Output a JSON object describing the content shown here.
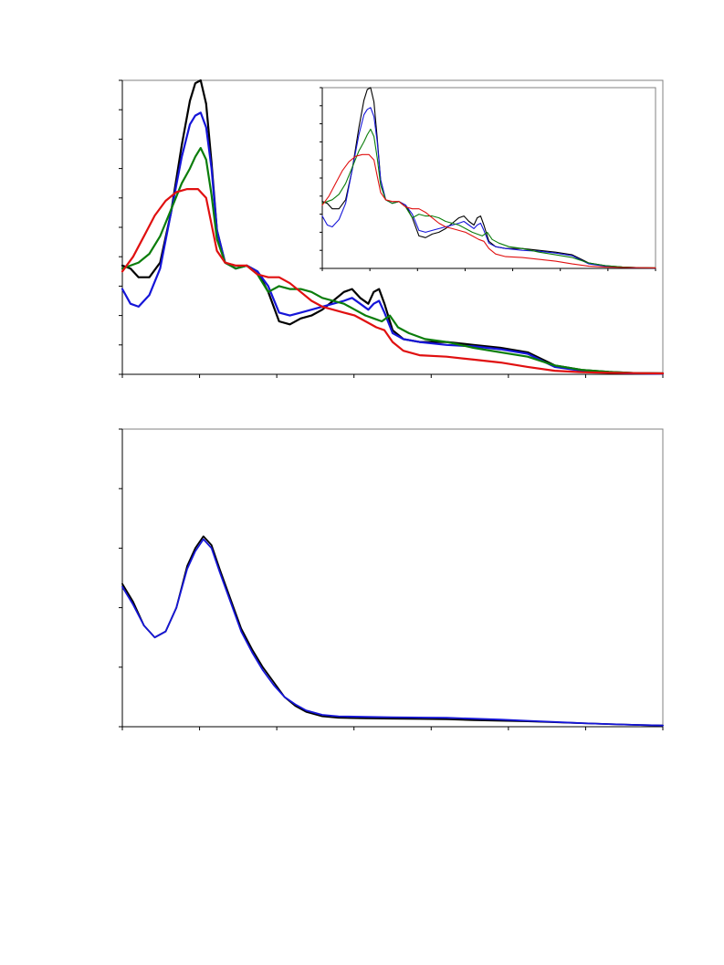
{
  "chart_data": [
    {
      "type": "line",
      "title": "",
      "xlabel": "",
      "ylabel": "",
      "xlim": [
        0,
        100
      ],
      "ylim": [
        0,
        1
      ],
      "x_ticks": 7,
      "y_ticks": 10,
      "grid": false,
      "legend": "none",
      "series": [
        {
          "color": "#000000",
          "points": [
            [
              0,
              0.37
            ],
            [
              1.5,
              0.36
            ],
            [
              3,
              0.33
            ],
            [
              5,
              0.33
            ],
            [
              7,
              0.38
            ],
            [
              9,
              0.55
            ],
            [
              11,
              0.78
            ],
            [
              12.5,
              0.93
            ],
            [
              13.5,
              0.99
            ],
            [
              14.5,
              1.0
            ],
            [
              15.5,
              0.92
            ],
            [
              16.5,
              0.72
            ],
            [
              17.5,
              0.49
            ],
            [
              19,
              0.38
            ],
            [
              21,
              0.36
            ],
            [
              23,
              0.37
            ],
            [
              25,
              0.35
            ],
            [
              27,
              0.28
            ],
            [
              29,
              0.18
            ],
            [
              31,
              0.17
            ],
            [
              33,
              0.19
            ],
            [
              35,
              0.2
            ],
            [
              37,
              0.22
            ],
            [
              39,
              0.25
            ],
            [
              41,
              0.28
            ],
            [
              42.5,
              0.29
            ],
            [
              44,
              0.26
            ],
            [
              45.5,
              0.24
            ],
            [
              46.5,
              0.28
            ],
            [
              47.5,
              0.29
            ],
            [
              48.5,
              0.24
            ],
            [
              50,
              0.15
            ],
            [
              52,
              0.12
            ],
            [
              55,
              0.11
            ],
            [
              60,
              0.11
            ],
            [
              65,
              0.1
            ],
            [
              70,
              0.09
            ],
            [
              75,
              0.075
            ],
            [
              80,
              0.03
            ],
            [
              85,
              0.015
            ],
            [
              90,
              0.008
            ],
            [
              95,
              0.004
            ],
            [
              100,
              0.003
            ]
          ]
        },
        {
          "color": "#1515d8",
          "points": [
            [
              0,
              0.29
            ],
            [
              1.5,
              0.24
            ],
            [
              3,
              0.23
            ],
            [
              5,
              0.27
            ],
            [
              7,
              0.36
            ],
            [
              9,
              0.55
            ],
            [
              11,
              0.74
            ],
            [
              12.5,
              0.85
            ],
            [
              13.5,
              0.88
            ],
            [
              14.5,
              0.89
            ],
            [
              15.5,
              0.84
            ],
            [
              16.5,
              0.7
            ],
            [
              17.5,
              0.49
            ],
            [
              19,
              0.38
            ],
            [
              21,
              0.36
            ],
            [
              23,
              0.37
            ],
            [
              25,
              0.35
            ],
            [
              27,
              0.3
            ],
            [
              29,
              0.21
            ],
            [
              31,
              0.2
            ],
            [
              33,
              0.21
            ],
            [
              35,
              0.22
            ],
            [
              37,
              0.23
            ],
            [
              39,
              0.24
            ],
            [
              41,
              0.25
            ],
            [
              42.5,
              0.26
            ],
            [
              44,
              0.24
            ],
            [
              45.5,
              0.22
            ],
            [
              46.5,
              0.24
            ],
            [
              47.5,
              0.25
            ],
            [
              48.5,
              0.21
            ],
            [
              50,
              0.14
            ],
            [
              52,
              0.12
            ],
            [
              55,
              0.11
            ],
            [
              60,
              0.1
            ],
            [
              65,
              0.095
            ],
            [
              70,
              0.085
            ],
            [
              75,
              0.07
            ],
            [
              80,
              0.025
            ],
            [
              85,
              0.012
            ],
            [
              90,
              0.006
            ],
            [
              95,
              0.003
            ],
            [
              100,
              0.002
            ]
          ]
        },
        {
          "color": "#0b7d0b",
          "points": [
            [
              0,
              0.36
            ],
            [
              3,
              0.38
            ],
            [
              5,
              0.41
            ],
            [
              7,
              0.47
            ],
            [
              9,
              0.56
            ],
            [
              11,
              0.65
            ],
            [
              12.5,
              0.7
            ],
            [
              13.5,
              0.74
            ],
            [
              14.5,
              0.77
            ],
            [
              15.5,
              0.73
            ],
            [
              16.5,
              0.61
            ],
            [
              17.5,
              0.46
            ],
            [
              19,
              0.38
            ],
            [
              21,
              0.36
            ],
            [
              23,
              0.37
            ],
            [
              25,
              0.34
            ],
            [
              27,
              0.28
            ],
            [
              29,
              0.3
            ],
            [
              31,
              0.29
            ],
            [
              33,
              0.29
            ],
            [
              35,
              0.28
            ],
            [
              37,
              0.26
            ],
            [
              39,
              0.25
            ],
            [
              41,
              0.24
            ],
            [
              43,
              0.22
            ],
            [
              45,
              0.2
            ],
            [
              46.5,
              0.19
            ],
            [
              48,
              0.18
            ],
            [
              49.5,
              0.2
            ],
            [
              51,
              0.16
            ],
            [
              53,
              0.14
            ],
            [
              56,
              0.12
            ],
            [
              60,
              0.11
            ],
            [
              65,
              0.09
            ],
            [
              70,
              0.075
            ],
            [
              75,
              0.06
            ],
            [
              80,
              0.03
            ],
            [
              85,
              0.015
            ],
            [
              90,
              0.008
            ],
            [
              95,
              0.004
            ],
            [
              100,
              0.003
            ]
          ]
        },
        {
          "color": "#e01010",
          "points": [
            [
              0,
              0.35
            ],
            [
              2,
              0.4
            ],
            [
              4,
              0.47
            ],
            [
              6,
              0.54
            ],
            [
              8,
              0.59
            ],
            [
              10,
              0.62
            ],
            [
              12,
              0.63
            ],
            [
              14,
              0.63
            ],
            [
              15.5,
              0.6
            ],
            [
              16.5,
              0.51
            ],
            [
              17.5,
              0.42
            ],
            [
              19,
              0.38
            ],
            [
              21,
              0.37
            ],
            [
              23,
              0.37
            ],
            [
              25,
              0.34
            ],
            [
              27,
              0.33
            ],
            [
              29,
              0.33
            ],
            [
              31,
              0.31
            ],
            [
              33,
              0.28
            ],
            [
              35,
              0.25
            ],
            [
              37,
              0.23
            ],
            [
              39,
              0.22
            ],
            [
              41,
              0.21
            ],
            [
              43,
              0.2
            ],
            [
              45,
              0.18
            ],
            [
              47,
              0.16
            ],
            [
              48.5,
              0.15
            ],
            [
              50,
              0.11
            ],
            [
              52,
              0.08
            ],
            [
              55,
              0.065
            ],
            [
              60,
              0.06
            ],
            [
              65,
              0.05
            ],
            [
              70,
              0.04
            ],
            [
              75,
              0.025
            ],
            [
              80,
              0.012
            ],
            [
              85,
              0.007
            ],
            [
              90,
              0.005
            ],
            [
              95,
              0.004
            ],
            [
              100,
              0.003
            ]
          ]
        }
      ]
    },
    {
      "type": "line",
      "title": "",
      "xlabel": "",
      "ylabel": "",
      "xlim": [
        0,
        100
      ],
      "ylim": [
        0,
        1
      ],
      "x_ticks": 7,
      "y_ticks": 5,
      "grid": false,
      "legend": "none",
      "series": [
        {
          "color": "#000000",
          "points": [
            [
              0,
              0.48
            ],
            [
              2,
              0.42
            ],
            [
              4,
              0.34
            ],
            [
              6,
              0.3
            ],
            [
              8,
              0.32
            ],
            [
              10,
              0.4
            ],
            [
              12,
              0.54
            ],
            [
              13.5,
              0.6
            ],
            [
              15,
              0.64
            ],
            [
              16.5,
              0.61
            ],
            [
              18,
              0.53
            ],
            [
              20,
              0.43
            ],
            [
              22,
              0.33
            ],
            [
              24,
              0.26
            ],
            [
              26,
              0.2
            ],
            [
              28,
              0.15
            ],
            [
              30,
              0.1
            ],
            [
              32,
              0.07
            ],
            [
              34,
              0.05
            ],
            [
              37,
              0.035
            ],
            [
              40,
              0.03
            ],
            [
              45,
              0.028
            ],
            [
              50,
              0.027
            ],
            [
              55,
              0.026
            ],
            [
              60,
              0.025
            ],
            [
              65,
              0.022
            ],
            [
              70,
              0.02
            ],
            [
              75,
              0.018
            ],
            [
              80,
              0.015
            ],
            [
              85,
              0.012
            ],
            [
              90,
              0.009
            ],
            [
              95,
              0.006
            ],
            [
              100,
              0.004
            ]
          ]
        },
        {
          "color": "#1515d8",
          "points": [
            [
              0,
              0.47
            ],
            [
              2,
              0.41
            ],
            [
              4,
              0.34
            ],
            [
              6,
              0.3
            ],
            [
              8,
              0.32
            ],
            [
              10,
              0.4
            ],
            [
              12,
              0.53
            ],
            [
              13.5,
              0.59
            ],
            [
              15,
              0.63
            ],
            [
              16.5,
              0.6
            ],
            [
              18,
              0.52
            ],
            [
              20,
              0.42
            ],
            [
              22,
              0.32
            ],
            [
              24,
              0.25
            ],
            [
              26,
              0.19
            ],
            [
              28,
              0.14
            ],
            [
              30,
              0.1
            ],
            [
              32,
              0.075
            ],
            [
              34,
              0.055
            ],
            [
              37,
              0.04
            ],
            [
              40,
              0.035
            ],
            [
              45,
              0.033
            ],
            [
              50,
              0.032
            ],
            [
              55,
              0.031
            ],
            [
              60,
              0.03
            ],
            [
              65,
              0.027
            ],
            [
              70,
              0.024
            ],
            [
              75,
              0.02
            ],
            [
              80,
              0.016
            ],
            [
              85,
              0.012
            ],
            [
              90,
              0.009
            ],
            [
              95,
              0.006
            ],
            [
              100,
              0.004
            ]
          ]
        }
      ]
    }
  ]
}
